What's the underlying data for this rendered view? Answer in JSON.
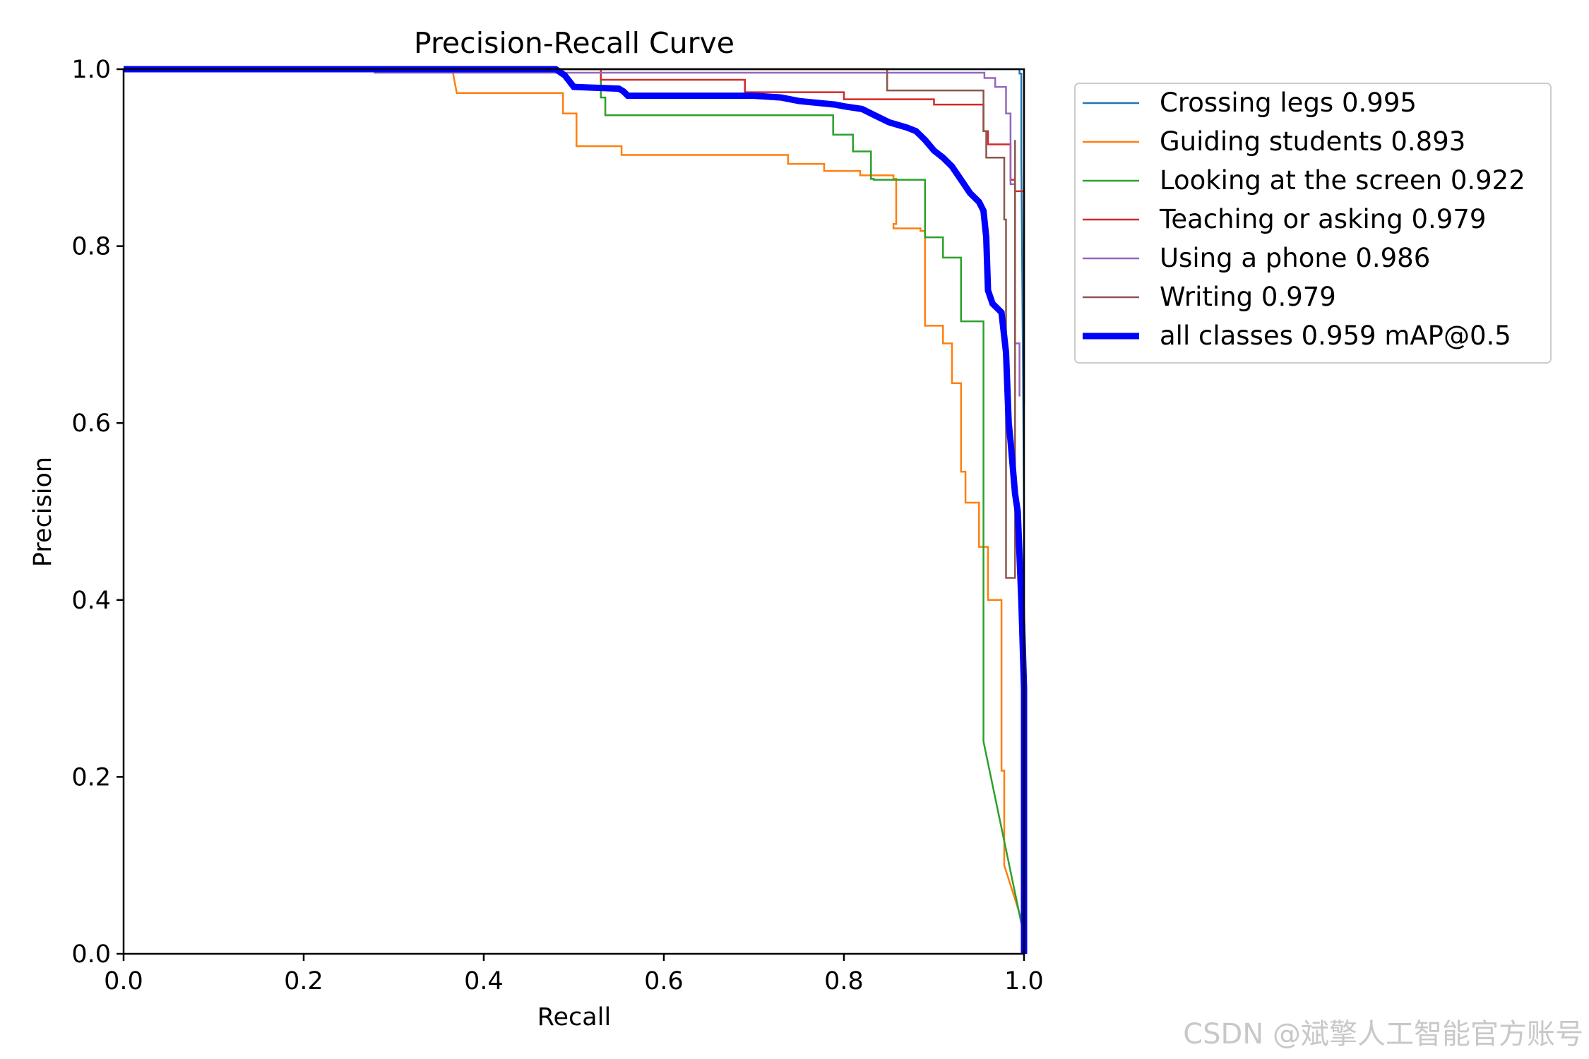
{
  "watermark": "CSDN @斌擎人工智能官方账号",
  "chart_data": {
    "type": "line",
    "title": "Precision-Recall Curve",
    "xlabel": "Recall",
    "ylabel": "Precision",
    "xlim": [
      0,
      1
    ],
    "ylim": [
      0,
      1
    ],
    "xticks": [
      "0.0",
      "0.2",
      "0.4",
      "0.6",
      "0.8",
      "1.0"
    ],
    "yticks": [
      "0.0",
      "0.2",
      "0.4",
      "0.6",
      "0.8",
      "1.0"
    ],
    "grid": false,
    "legend_position": "outside-top-right",
    "series": [
      {
        "name": "Crossing legs 0.995",
        "color": "#1f77b4",
        "x": [
          0,
          0.99,
          0.99,
          0.995,
          0.995,
          0.997,
          0.997,
          1.0,
          1.0
        ],
        "y": [
          1.0,
          1.0,
          1.0,
          1.0,
          0.995,
          0.995,
          0.9,
          0.5,
          0.0
        ]
      },
      {
        "name": "Guiding students 0.893",
        "color": "#ff7f0e",
        "x": [
          0,
          0.365,
          0.37,
          0.488,
          0.488,
          0.503,
          0.503,
          0.553,
          0.553,
          0.738,
          0.738,
          0.778,
          0.778,
          0.818,
          0.818,
          0.855,
          0.855,
          0.855,
          0.858,
          0.858,
          0.855,
          0.855,
          0.858,
          0.858,
          0.885,
          0.885,
          0.89,
          0.89,
          0.91,
          0.91,
          0.92,
          0.92,
          0.93,
          0.93,
          0.935,
          0.935,
          0.95,
          0.95,
          0.96,
          0.96,
          0.965,
          0.965,
          0.975,
          0.975,
          0.978,
          0.978,
          1.0
        ],
        "y": [
          1.0,
          1.0,
          0.973,
          0.973,
          0.95,
          0.95,
          0.913,
          0.913,
          0.903,
          0.903,
          0.893,
          0.893,
          0.885,
          0.885,
          0.88,
          0.88,
          0.88,
          0.876,
          0.876,
          0.825,
          0.825,
          0.82,
          0.82,
          0.82,
          0.82,
          0.817,
          0.817,
          0.71,
          0.71,
          0.69,
          0.69,
          0.645,
          0.645,
          0.545,
          0.545,
          0.51,
          0.51,
          0.46,
          0.46,
          0.4,
          0.4,
          0.4,
          0.4,
          0.207,
          0.207,
          0.1,
          0.03
        ]
      },
      {
        "name": "Looking at the screen 0.922",
        "color": "#2ca02c",
        "x": [
          0,
          0.53,
          0.53,
          0.535,
          0.535,
          0.788,
          0.788,
          0.81,
          0.81,
          0.83,
          0.83,
          0.833,
          0.833,
          0.833,
          0.87,
          0.87,
          0.89,
          0.89,
          0.91,
          0.91,
          0.93,
          0.93,
          0.955,
          0.955,
          0.955,
          1.0,
          1.0
        ],
        "y": [
          1.0,
          1.0,
          0.968,
          0.968,
          0.948,
          0.948,
          0.926,
          0.926,
          0.907,
          0.907,
          0.876,
          0.876,
          0.876,
          0.875,
          0.875,
          0.875,
          0.875,
          0.81,
          0.81,
          0.787,
          0.787,
          0.715,
          0.715,
          0.24,
          0.24,
          0.02,
          0.0
        ]
      },
      {
        "name": "Teaching or asking 0.979",
        "color": "#d62728",
        "x": [
          0,
          0.53,
          0.53,
          0.69,
          0.69,
          0.8,
          0.8,
          0.9,
          0.9,
          0.955,
          0.955,
          0.96,
          0.96,
          0.985,
          0.985,
          0.99,
          0.99,
          1.0,
          1.0
        ],
        "y": [
          1.0,
          1.0,
          0.988,
          0.988,
          0.974,
          0.974,
          0.966,
          0.966,
          0.96,
          0.96,
          0.93,
          0.93,
          0.915,
          0.915,
          0.875,
          0.875,
          0.862,
          0.862,
          0.62
        ]
      },
      {
        "name": "Using a phone 0.986",
        "color": "#9467bd",
        "x": [
          0,
          0.279,
          0.279,
          0.956,
          0.956,
          0.968,
          0.968,
          0.98,
          0.98,
          0.985,
          0.985,
          0.99,
          0.99,
          0.995,
          0.995
        ],
        "y": [
          1.0,
          1.0,
          0.996,
          0.996,
          0.99,
          0.99,
          0.98,
          0.98,
          0.95,
          0.95,
          0.87,
          0.87,
          0.69,
          0.69,
          0.63
        ]
      },
      {
        "name": "Writing 0.979",
        "color": "#8c564b",
        "x": [
          0,
          0.848,
          0.848,
          0.855,
          0.855,
          0.955,
          0.955,
          0.958,
          0.958,
          0.978,
          0.978,
          0.98,
          0.98,
          0.985,
          0.985,
          0.99,
          0.99
        ],
        "y": [
          1.0,
          1.0,
          0.976,
          0.976,
          0.976,
          0.976,
          0.93,
          0.93,
          0.9,
          0.9,
          0.83,
          0.83,
          0.425,
          0.425,
          0.425,
          0.425,
          0.92
        ]
      },
      {
        "name": "all classes 0.959 mAP@0.5",
        "color": "#0000ff",
        "thick": true,
        "x": [
          0,
          0.48,
          0.49,
          0.5,
          0.55,
          0.555,
          0.56,
          0.7,
          0.73,
          0.74,
          0.75,
          0.79,
          0.8,
          0.82,
          0.83,
          0.84,
          0.85,
          0.86,
          0.87,
          0.88,
          0.89,
          0.9,
          0.91,
          0.92,
          0.93,
          0.94,
          0.95,
          0.955,
          0.958,
          0.96,
          0.965,
          0.97,
          0.975,
          0.98,
          0.983,
          0.985,
          0.99,
          0.993,
          0.997,
          1.0,
          1.0
        ],
        "y": [
          1.0,
          1.0,
          0.993,
          0.98,
          0.978,
          0.975,
          0.97,
          0.97,
          0.968,
          0.966,
          0.964,
          0.96,
          0.958,
          0.955,
          0.95,
          0.945,
          0.94,
          0.937,
          0.934,
          0.93,
          0.92,
          0.908,
          0.9,
          0.89,
          0.875,
          0.86,
          0.85,
          0.84,
          0.81,
          0.75,
          0.735,
          0.73,
          0.725,
          0.68,
          0.6,
          0.58,
          0.52,
          0.5,
          0.4,
          0.3,
          0.0
        ]
      }
    ]
  }
}
